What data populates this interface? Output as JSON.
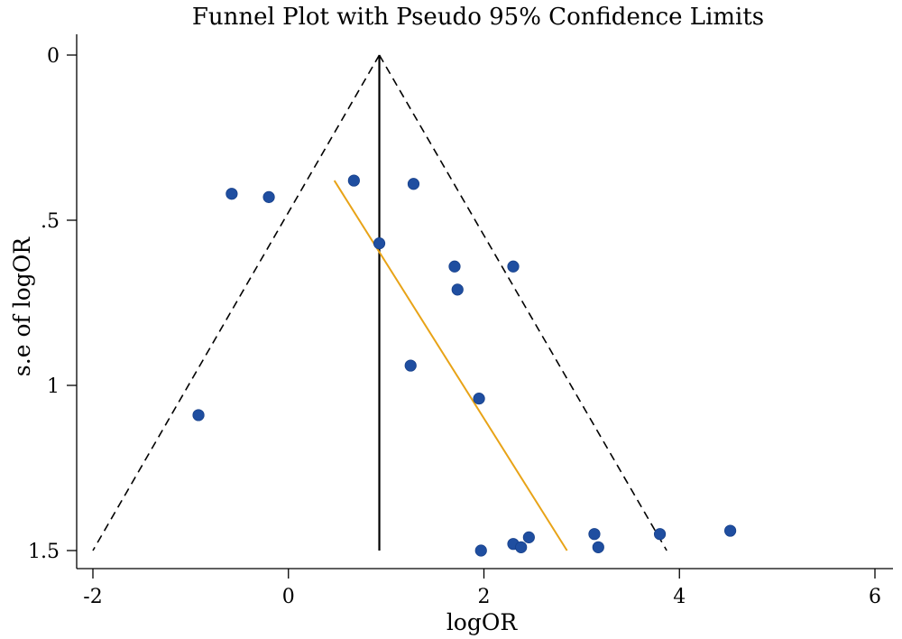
{
  "chart_data": {
    "type": "scatter",
    "title": "Funnel Plot with Pseudo 95% Confidence Limits",
    "xlabel": "logOR",
    "ylabel": "s.e of logOR",
    "xlim": [
      -2,
      6
    ],
    "ylim": [
      1.5,
      0
    ],
    "y_reversed": true,
    "xticks": [
      -2,
      0,
      2,
      4,
      6
    ],
    "xtick_labels": [
      "-2",
      "0",
      "2",
      "4",
      "6"
    ],
    "yticks": [
      0,
      0.5,
      1,
      1.5
    ],
    "ytick_labels": [
      "0",
      ".5",
      "1",
      "1.5"
    ],
    "grid": false,
    "legend": "none",
    "pooled_estimate": 0.93,
    "funnel": {
      "apex": [
        0.93,
        0
      ],
      "left_base": [
        -2.0,
        1.5
      ],
      "right_base": [
        3.87,
        1.5
      ]
    },
    "regression_line": {
      "start": [
        0.47,
        0.38
      ],
      "end": [
        2.85,
        1.5
      ]
    },
    "points": [
      {
        "x": -0.58,
        "y": 0.42
      },
      {
        "x": -0.2,
        "y": 0.43
      },
      {
        "x": 0.67,
        "y": 0.38
      },
      {
        "x": 1.28,
        "y": 0.39
      },
      {
        "x": 0.93,
        "y": 0.57
      },
      {
        "x": 1.7,
        "y": 0.64
      },
      {
        "x": 2.3,
        "y": 0.64
      },
      {
        "x": 1.73,
        "y": 0.71
      },
      {
        "x": 1.25,
        "y": 0.94
      },
      {
        "x": 1.95,
        "y": 1.04
      },
      {
        "x": -0.92,
        "y": 1.09
      },
      {
        "x": 1.97,
        "y": 1.5
      },
      {
        "x": 2.3,
        "y": 1.48
      },
      {
        "x": 2.38,
        "y": 1.49
      },
      {
        "x": 2.46,
        "y": 1.46
      },
      {
        "x": 3.13,
        "y": 1.45
      },
      {
        "x": 3.17,
        "y": 1.49
      },
      {
        "x": 3.8,
        "y": 1.45
      },
      {
        "x": 4.52,
        "y": 1.44
      }
    ],
    "colors": {
      "points": "#1f4ea0",
      "regression": "#e8a317",
      "funnel": "#000000",
      "vertical_line": "#000000"
    }
  }
}
